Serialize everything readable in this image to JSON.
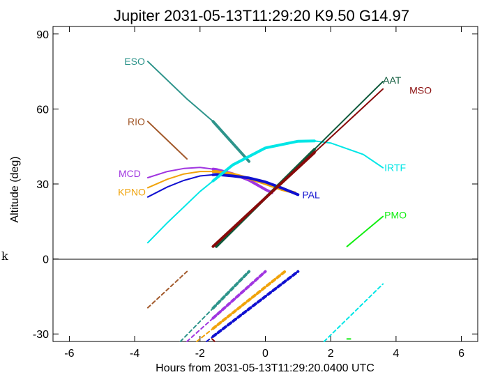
{
  "chart_data": {
    "type": "line",
    "title": "Jupiter 2031-05-13T11:29:20  K9.50  G14.97",
    "xlabel": "Hours from 2031-05-13T11:29:20.0400 UTC",
    "ylabel": "Altitude (deg)",
    "xlim": [
      -6.5,
      6.5
    ],
    "ylim": [
      -33,
      93
    ],
    "xticks": [
      "-6",
      "-4",
      "-2",
      "0",
      "2",
      "4",
      "6"
    ],
    "xtick_values": [
      -6,
      -4,
      -2,
      0,
      2,
      4,
      6
    ],
    "yticks": [
      "90",
      "60",
      "30",
      "0",
      "-30"
    ],
    "ytick_values": [
      90,
      60,
      30,
      0,
      -30
    ],
    "stray_text": "k",
    "grid": false,
    "series": [
      {
        "name": "ESO",
        "color": "#2e948b",
        "x": [
          -3.6,
          -2.4,
          -1.6,
          -0.5
        ],
        "y": [
          79,
          64,
          55,
          39
        ],
        "thick_from": -1.6
      },
      {
        "name": "RIO",
        "color": "#a35a2c",
        "x": [
          -3.6,
          -2.4
        ],
        "y": [
          55,
          40
        ]
      },
      {
        "name": "MCD",
        "color": "#a035e0",
        "x": [
          -3.6,
          -3.0,
          -2.5,
          -2.0,
          -1.5,
          -1.0,
          -0.5,
          0.0,
          0.2
        ],
        "y": [
          32.5,
          35.0,
          36.2,
          36.6,
          35.8,
          34.1,
          31.5,
          27.8,
          26.5
        ],
        "thick_from": -1.6
      },
      {
        "name": "KPNO",
        "color": "#f0a30a",
        "x": [
          -3.6,
          -3.0,
          -2.5,
          -2.0,
          -1.5,
          -1.0,
          -0.5,
          0.0,
          0.5,
          0.9
        ],
        "y": [
          28.5,
          31.9,
          34.0,
          35.0,
          35.0,
          34.0,
          32.2,
          30.1,
          27.8,
          26.5
        ],
        "thick_from": -1.6
      },
      {
        "name": "PAL",
        "color": "#1010d0",
        "x": [
          -3.6,
          -3.0,
          -2.5,
          -2.0,
          -1.5,
          -1.0,
          -0.5,
          0.0,
          0.5,
          1.0
        ],
        "y": [
          24.8,
          28.8,
          31.4,
          33.2,
          33.8,
          33.2,
          32.4,
          30.8,
          28.4,
          25.7
        ],
        "thick_from": -1.6
      },
      {
        "name": "IRTF",
        "color": "#00e6e6",
        "x": [
          -3.6,
          -3.0,
          -2.0,
          -1.0,
          0.0,
          1.0,
          1.5,
          2.0,
          3.0,
          3.6
        ],
        "y": [
          6.5,
          14.5,
          27.0,
          37.6,
          44.4,
          47.1,
          47.2,
          46.4,
          41.8,
          36.5
        ],
        "thick_from": -1.6,
        "thick_to": 1.5
      },
      {
        "name": "AAT",
        "color": "#0f5a3c",
        "x": [
          -1.5,
          3.6
        ],
        "y": [
          5,
          71
        ],
        "thick_to": 1.5
      },
      {
        "name": "MSO",
        "color": "#880a0a",
        "x": [
          -1.6,
          3.6
        ],
        "y": [
          5,
          68
        ],
        "thick_to": 1.5
      },
      {
        "name": "PMO",
        "color": "#10ee10",
        "x": [
          2.5,
          3.6
        ],
        "y": [
          5,
          17
        ]
      }
    ],
    "lower_dashed_series": [
      {
        "color": "#a35a2c",
        "x": [
          -3.6,
          -2.4
        ],
        "y": [
          -19.5,
          -5
        ]
      },
      {
        "color": "#2e948b",
        "x": [
          -2.6,
          -0.5
        ],
        "y": [
          -33,
          -5
        ],
        "thick_from": -1.6
      },
      {
        "color": "#a035e0",
        "x": [
          -2.4,
          0.0
        ],
        "y": [
          -33,
          -5
        ],
        "thick_from": -1.6
      },
      {
        "color": "#f0a30a",
        "x": [
          -2.1,
          0.6
        ],
        "y": [
          -33,
          -5
        ],
        "thick_from": -1.6
      },
      {
        "color": "#1010d0",
        "x": [
          -1.8,
          1.0
        ],
        "y": [
          -33,
          -5
        ],
        "thick_from": -1.6
      },
      {
        "color": "#00e6e6",
        "x": [
          1.8,
          3.6
        ],
        "y": [
          -33,
          -10
        ]
      },
      {
        "color": "#880a0a",
        "x": [
          -1.63,
          -1.55
        ],
        "y": [
          -32,
          -33
        ]
      },
      {
        "color": "#10ee10",
        "x": [
          2.5,
          2.65
        ],
        "y": [
          -32,
          -32
        ]
      }
    ]
  }
}
